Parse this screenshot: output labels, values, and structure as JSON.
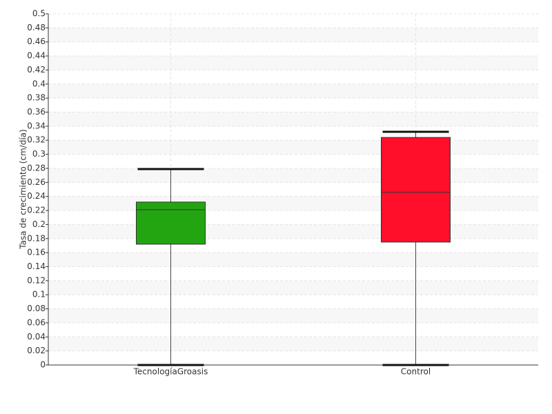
{
  "chart_data": {
    "type": "box",
    "y_label": "Tasa de crecimiento (cm/día)",
    "categories": [
      "TecnologíaGroasis",
      "Control"
    ],
    "boxes": [
      {
        "min": 0,
        "q1": 0.172,
        "median": 0.221,
        "q3": 0.232,
        "max": 0.279,
        "color": "#22a511"
      },
      {
        "min": 0,
        "q1": 0.175,
        "median": 0.246,
        "q3": 0.324,
        "max": 0.332,
        "color": "#ff0f2a"
      }
    ],
    "ylim": [
      0,
      0.5
    ],
    "yticks": [
      0,
      0.02,
      0.04,
      0.06,
      0.08,
      0.1,
      0.12,
      0.14,
      0.16,
      0.18,
      0.2,
      0.22,
      0.24,
      0.26,
      0.28,
      0.3,
      0.32,
      0.34,
      0.36,
      0.38,
      0.4,
      0.42,
      0.44,
      0.46,
      0.48,
      0.5
    ],
    "grid": true
  }
}
